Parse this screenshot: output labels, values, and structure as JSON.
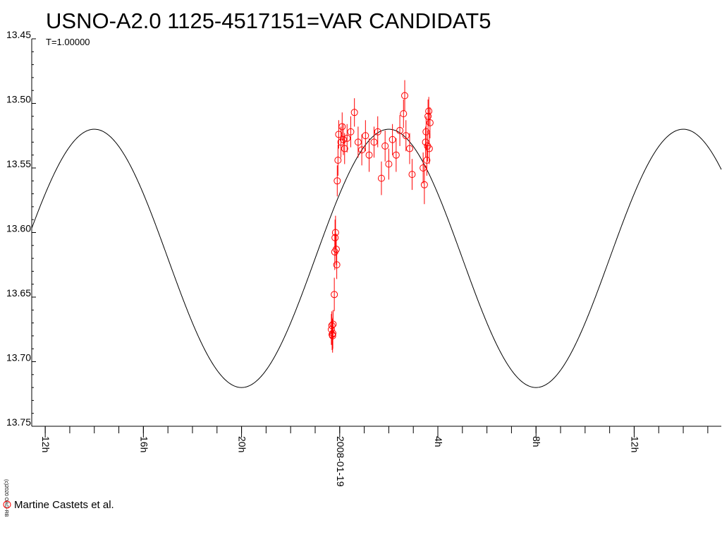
{
  "chart_data": {
    "type": "scatter",
    "title": "USNO-A2.0 1125-4517151=VAR CANDIDAT5",
    "subtitle": "T=1.00000",
    "ylabel": "",
    "xlabel": "",
    "y_inverted": true,
    "ylim": [
      13.45,
      13.75
    ],
    "y_ticks": [
      "13.45",
      "13.50",
      "13.55",
      "13.60",
      "13.65",
      "13.70",
      "13.75"
    ],
    "x_unit": "hours relative to 2008-01-19 00:00",
    "xlim": [
      -12.55,
      15.55
    ],
    "x_ticks": [
      {
        "x": -12,
        "label": "12h"
      },
      {
        "x": -8,
        "label": "16h"
      },
      {
        "x": -4,
        "label": "20h"
      },
      {
        "x": 0,
        "label": "2008-01-19"
      },
      {
        "x": 4,
        "label": "4h"
      },
      {
        "x": 8,
        "label": "8h"
      },
      {
        "x": 12,
        "label": "12h"
      }
    ],
    "model": {
      "type": "sinusoid",
      "period_hours": 12,
      "mean": 13.62,
      "amplitude": 0.1,
      "brightest_at_x": [
        -10,
        2,
        14
      ],
      "faintest_at_x": [
        -4,
        8
      ]
    },
    "series": [
      {
        "name": "Martine Castets et al.",
        "color": "#ff0000",
        "marker": "open-circle",
        "points": [
          {
            "x": -0.34,
            "y": 13.675,
            "err": 0.012
          },
          {
            "x": -0.32,
            "y": 13.672,
            "err": 0.011
          },
          {
            "x": -0.31,
            "y": 13.679,
            "err": 0.012
          },
          {
            "x": -0.29,
            "y": 13.68,
            "err": 0.013
          },
          {
            "x": -0.28,
            "y": 13.678,
            "err": 0.012
          },
          {
            "x": -0.27,
            "y": 13.671,
            "err": 0.011
          },
          {
            "x": -0.22,
            "y": 13.648,
            "err": 0.013
          },
          {
            "x": -0.2,
            "y": 13.615,
            "err": 0.014
          },
          {
            "x": -0.19,
            "y": 13.604,
            "err": 0.014
          },
          {
            "x": -0.17,
            "y": 13.6,
            "err": 0.013
          },
          {
            "x": -0.14,
            "y": 13.613,
            "err": 0.012
          },
          {
            "x": -0.12,
            "y": 13.625,
            "err": 0.011
          },
          {
            "x": -0.1,
            "y": 13.56,
            "err": 0.012
          },
          {
            "x": -0.07,
            "y": 13.544,
            "err": 0.012
          },
          {
            "x": -0.04,
            "y": 13.524,
            "err": 0.011
          },
          {
            "x": 0.05,
            "y": 13.53,
            "err": 0.012
          },
          {
            "x": 0.1,
            "y": 13.518,
            "err": 0.011
          },
          {
            "x": 0.15,
            "y": 13.528,
            "err": 0.012
          },
          {
            "x": 0.2,
            "y": 13.535,
            "err": 0.012
          },
          {
            "x": 0.3,
            "y": 13.527,
            "err": 0.011
          },
          {
            "x": 0.45,
            "y": 13.522,
            "err": 0.012
          },
          {
            "x": 0.6,
            "y": 13.507,
            "err": 0.011
          },
          {
            "x": 0.75,
            "y": 13.53,
            "err": 0.012
          },
          {
            "x": 0.9,
            "y": 13.536,
            "err": 0.012
          },
          {
            "x": 1.05,
            "y": 13.525,
            "err": 0.012
          },
          {
            "x": 1.2,
            "y": 13.54,
            "err": 0.013
          },
          {
            "x": 1.4,
            "y": 13.53,
            "err": 0.012
          },
          {
            "x": 1.55,
            "y": 13.522,
            "err": 0.012
          },
          {
            "x": 1.7,
            "y": 13.558,
            "err": 0.013
          },
          {
            "x": 1.85,
            "y": 13.533,
            "err": 0.012
          },
          {
            "x": 2.0,
            "y": 13.547,
            "err": 0.012
          },
          {
            "x": 2.15,
            "y": 13.528,
            "err": 0.012
          },
          {
            "x": 2.3,
            "y": 13.54,
            "err": 0.013
          },
          {
            "x": 2.45,
            "y": 13.521,
            "err": 0.012
          },
          {
            "x": 2.6,
            "y": 13.508,
            "err": 0.011
          },
          {
            "x": 2.65,
            "y": 13.494,
            "err": 0.012
          },
          {
            "x": 2.7,
            "y": 13.525,
            "err": 0.012
          },
          {
            "x": 2.85,
            "y": 13.535,
            "err": 0.012
          },
          {
            "x": 2.95,
            "y": 13.555,
            "err": 0.012
          },
          {
            "x": 3.4,
            "y": 13.55,
            "err": 0.012
          },
          {
            "x": 3.45,
            "y": 13.563,
            "err": 0.015
          },
          {
            "x": 3.5,
            "y": 13.53,
            "err": 0.012
          },
          {
            "x": 3.52,
            "y": 13.522,
            "err": 0.012
          },
          {
            "x": 3.55,
            "y": 13.544,
            "err": 0.012
          },
          {
            "x": 3.58,
            "y": 13.533,
            "err": 0.012
          },
          {
            "x": 3.6,
            "y": 13.51,
            "err": 0.013
          },
          {
            "x": 3.63,
            "y": 13.506,
            "err": 0.011
          },
          {
            "x": 3.65,
            "y": 13.535,
            "err": 0.012
          },
          {
            "x": 3.68,
            "y": 13.515,
            "err": 0.012
          }
        ]
      }
    ],
    "legend_position": "bottom-left",
    "credit": "(c)2020 OAG-RB",
    "grid": false
  }
}
